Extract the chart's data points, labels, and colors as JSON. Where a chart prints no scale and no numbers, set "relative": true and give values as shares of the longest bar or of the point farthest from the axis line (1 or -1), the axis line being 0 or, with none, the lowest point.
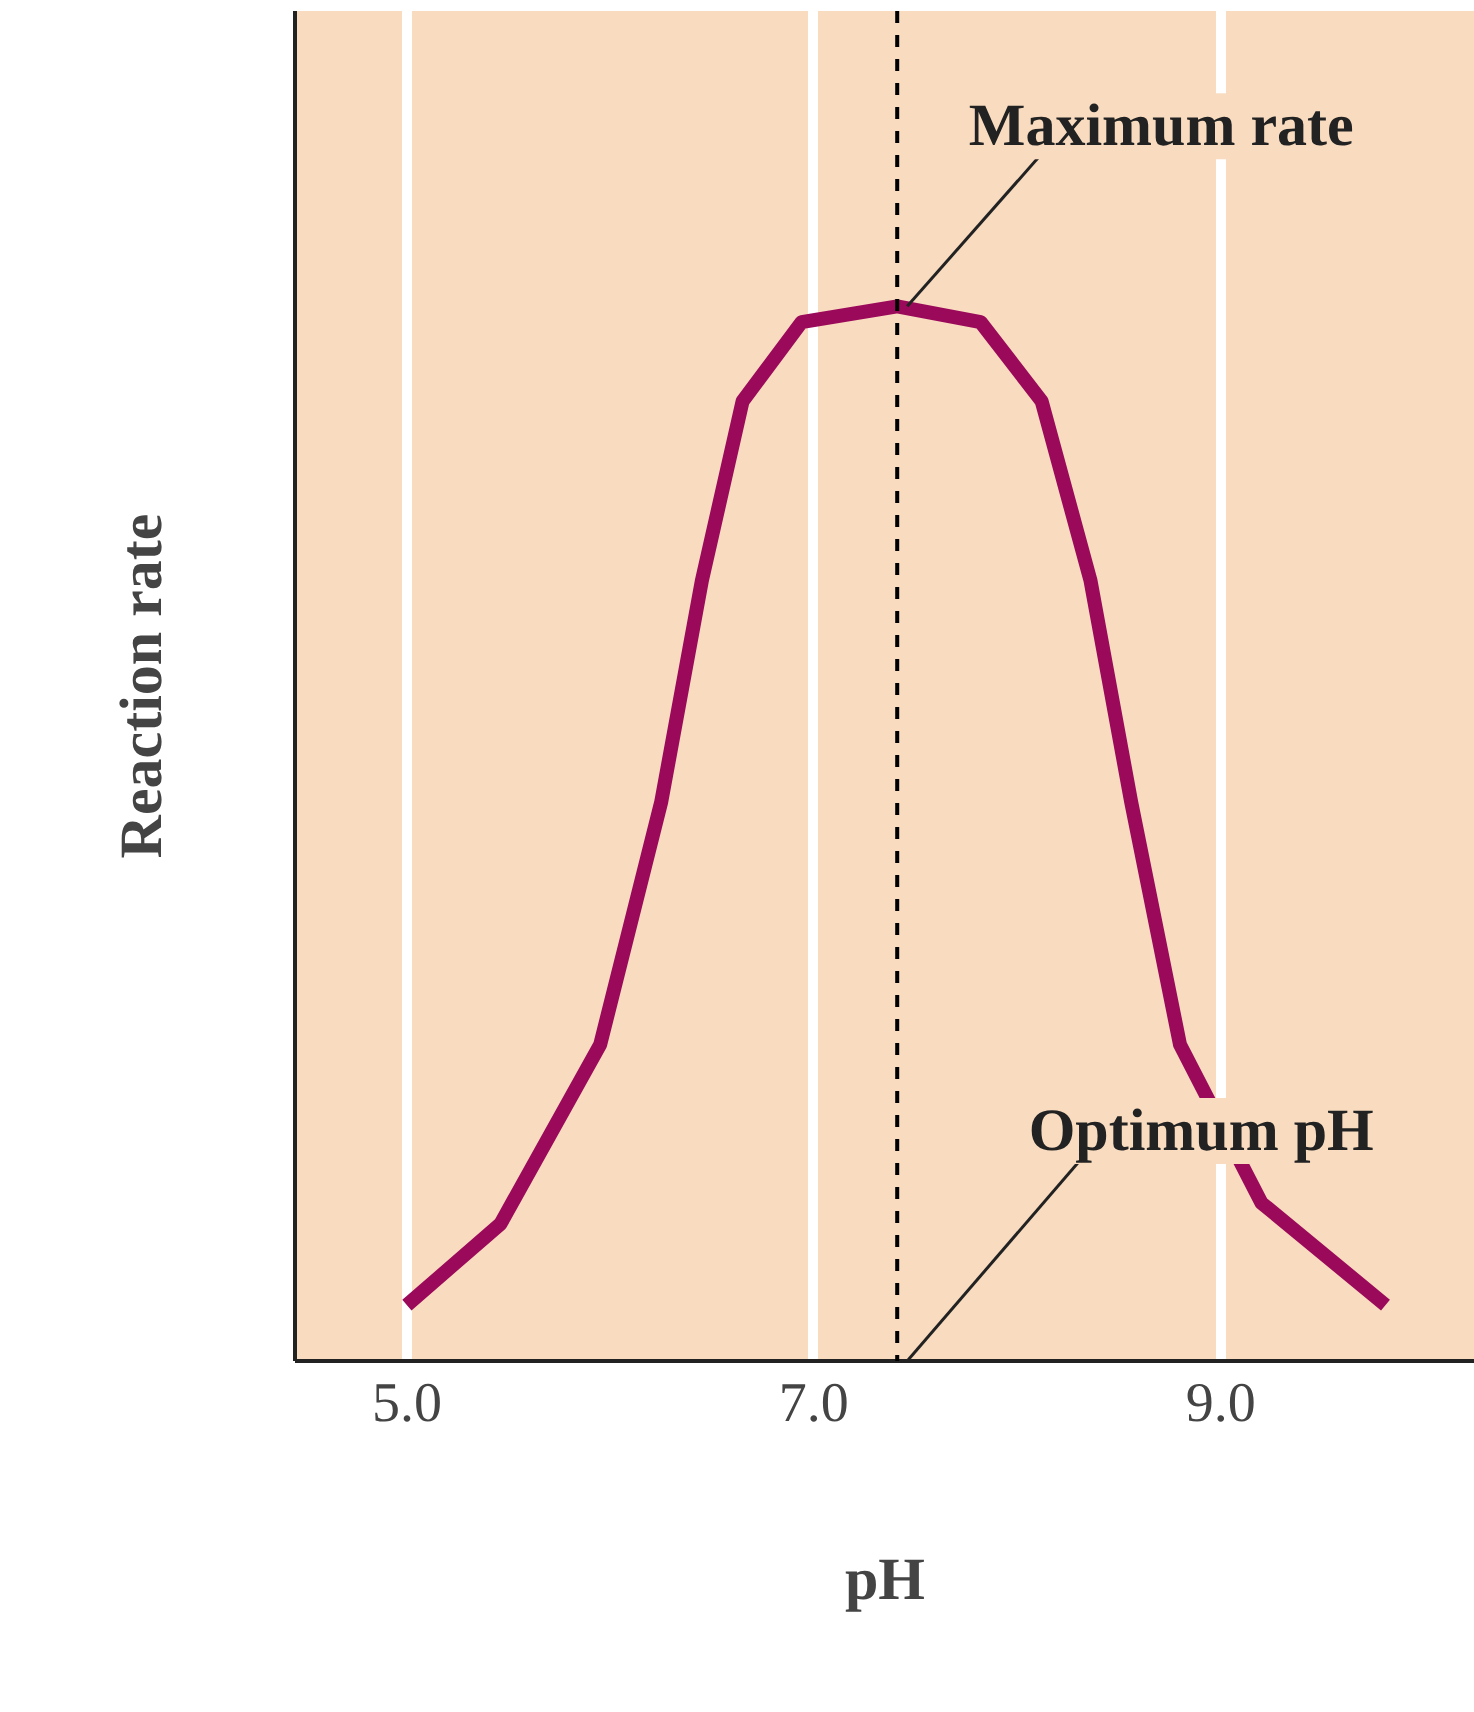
{
  "chart_data": {
    "type": "line",
    "relative": true,
    "xlabel": "pH",
    "ylabel": "Reaction rate",
    "x": [
      5.0,
      5.46,
      5.95,
      6.25,
      6.45,
      6.65,
      6.94,
      7.41,
      7.82,
      8.12,
      8.36,
      8.56,
      8.8,
      9.2,
      9.81
    ],
    "series": [
      {
        "color": "#9b0a5a",
        "values": [
          0.053,
          0.13,
          0.3,
          0.53,
          0.74,
          0.91,
          0.985,
          1.0,
          0.985,
          0.91,
          0.74,
          0.53,
          0.3,
          0.15,
          0.053
        ]
      }
    ],
    "xlim": [
      4.45,
      10.25
    ],
    "xticks": [
      {
        "value": 5,
        "label": "5.0"
      },
      {
        "value": 7,
        "label": "7.0"
      },
      {
        "value": 9,
        "label": "9.0"
      }
    ],
    "grid": "x",
    "marker": "none",
    "line_style": "solid",
    "ref_lines": [
      {
        "axis": "x",
        "value": 7.41,
        "color": "#000000",
        "line_style": "dashed",
        "label": "Optimum pH"
      }
    ],
    "annotations": [
      {
        "text": "Maximum rate",
        "x": 7.41,
        "y": 1.0
      }
    ]
  }
}
